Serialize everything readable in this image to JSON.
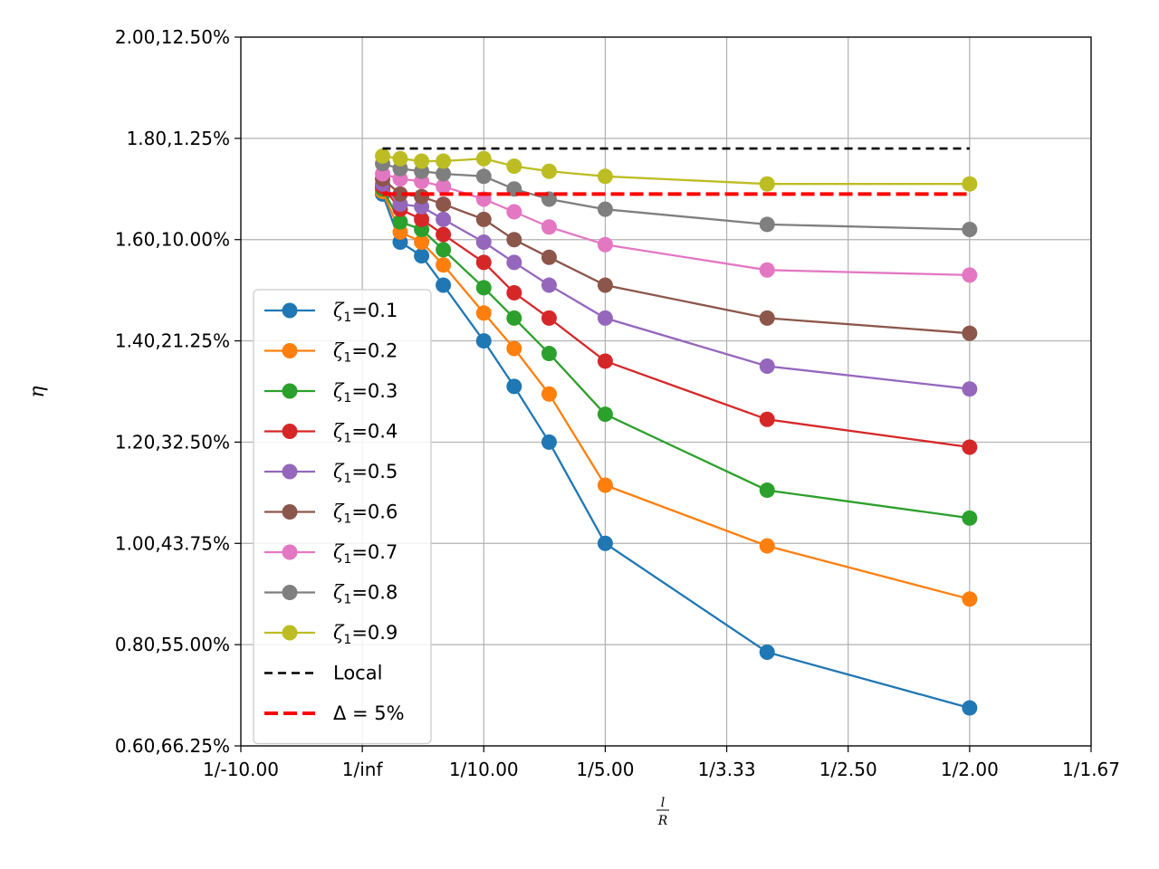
{
  "chart_data": {
    "type": "line",
    "ylabel": "η",
    "xlabel_num": "l",
    "xlabel_den": "R",
    "xlim": [
      -0.1,
      0.6
    ],
    "ylim": [
      0.6,
      2.0
    ],
    "x_ticks": [
      {
        "value": -0.1,
        "label": "1/-10.00"
      },
      {
        "value": 0.0,
        "label": "1/inf"
      },
      {
        "value": 0.1,
        "label": "1/10.00"
      },
      {
        "value": 0.2,
        "label": "1/5.00"
      },
      {
        "value": 0.3,
        "label": "1/3.33"
      },
      {
        "value": 0.4,
        "label": "1/2.50"
      },
      {
        "value": 0.5,
        "label": "1/2.00"
      },
      {
        "value": 0.6,
        "label": "1/1.67"
      }
    ],
    "y_ticks": [
      {
        "value": 0.6,
        "label": "0.60,66.25%"
      },
      {
        "value": 0.8,
        "label": "0.80,55.00%"
      },
      {
        "value": 1.0,
        "label": "1.00,43.75%"
      },
      {
        "value": 1.2,
        "label": "1.20,32.50%"
      },
      {
        "value": 1.4,
        "label": "1.40,21.25%"
      },
      {
        "value": 1.6,
        "label": "1.60,10.00%"
      },
      {
        "value": 1.8,
        "label": "1.80,1.25%"
      },
      {
        "value": 2.0,
        "label": "2.00,12.50%"
      }
    ],
    "grid": true,
    "legend_position": "lower-left",
    "x": [
      0.0167,
      0.0312,
      0.0488,
      0.0667,
      0.1,
      0.125,
      0.1538,
      0.2,
      0.3333,
      0.5
    ],
    "series": [
      {
        "name": "ζ1=0.1",
        "color": "#1f77b4",
        "values": [
          1.69,
          1.595,
          1.568,
          1.51,
          1.4,
          1.31,
          1.2,
          1.0,
          0.785,
          0.675
        ]
      },
      {
        "name": "ζ1=0.2",
        "color": "#ff7f0e",
        "values": [
          1.695,
          1.615,
          1.595,
          1.55,
          1.455,
          1.385,
          1.295,
          1.115,
          0.995,
          0.89
        ]
      },
      {
        "name": "ζ1=0.3",
        "color": "#2ca02c",
        "values": [
          1.7,
          1.635,
          1.62,
          1.58,
          1.505,
          1.445,
          1.375,
          1.255,
          1.105,
          1.05
        ]
      },
      {
        "name": "ζ1=0.4",
        "color": "#d62728",
        "values": [
          1.705,
          1.66,
          1.64,
          1.61,
          1.555,
          1.495,
          1.445,
          1.36,
          1.245,
          1.19
        ]
      },
      {
        "name": "ζ1=0.5",
        "color": "#9467bd",
        "values": [
          1.71,
          1.67,
          1.665,
          1.64,
          1.595,
          1.555,
          1.51,
          1.445,
          1.35,
          1.305
        ]
      },
      {
        "name": "ζ1=0.6",
        "color": "#8c564b",
        "values": [
          1.72,
          1.69,
          1.685,
          1.67,
          1.64,
          1.6,
          1.565,
          1.51,
          1.445,
          1.415
        ]
      },
      {
        "name": "ζ1=0.7",
        "color": "#e377c2",
        "values": [
          1.73,
          1.72,
          1.715,
          1.705,
          1.68,
          1.655,
          1.625,
          1.59,
          1.54,
          1.53
        ]
      },
      {
        "name": "ζ1=0.8",
        "color": "#7f7f7f",
        "values": [
          1.75,
          1.74,
          1.735,
          1.73,
          1.725,
          1.7,
          1.68,
          1.66,
          1.63,
          1.62
        ]
      },
      {
        "name": "ζ1=0.9",
        "color": "#bcbd22",
        "values": [
          1.765,
          1.76,
          1.755,
          1.755,
          1.76,
          1.745,
          1.735,
          1.725,
          1.71,
          1.71
        ]
      }
    ],
    "reference_lines": [
      {
        "name": "Local",
        "color": "#000000",
        "y": 1.78,
        "x_range": [
          0.0167,
          0.5
        ],
        "dash": "short"
      },
      {
        "name": "Δ = 5%",
        "color": "#ff0000",
        "y": 1.69,
        "x_range": [
          0.0167,
          0.5
        ],
        "dash": "long"
      }
    ],
    "legend": [
      {
        "symbol": "ζ",
        "sub": "1",
        "text": "=0.1",
        "color": "#1f77b4",
        "kind": "marker"
      },
      {
        "symbol": "ζ",
        "sub": "1",
        "text": "=0.2",
        "color": "#ff7f0e",
        "kind": "marker"
      },
      {
        "symbol": "ζ",
        "sub": "1",
        "text": "=0.3",
        "color": "#2ca02c",
        "kind": "marker"
      },
      {
        "symbol": "ζ",
        "sub": "1",
        "text": "=0.4",
        "color": "#d62728",
        "kind": "marker"
      },
      {
        "symbol": "ζ",
        "sub": "1",
        "text": "=0.5",
        "color": "#9467bd",
        "kind": "marker"
      },
      {
        "symbol": "ζ",
        "sub": "1",
        "text": "=0.6",
        "color": "#8c564b",
        "kind": "marker"
      },
      {
        "symbol": "ζ",
        "sub": "1",
        "text": "=0.7",
        "color": "#e377c2",
        "kind": "marker"
      },
      {
        "symbol": "ζ",
        "sub": "1",
        "text": "=0.8",
        "color": "#7f7f7f",
        "kind": "marker"
      },
      {
        "symbol": "ζ",
        "sub": "1",
        "text": "=0.9",
        "color": "#bcbd22",
        "kind": "marker"
      },
      {
        "symbol": "",
        "sub": "",
        "text": "Local",
        "color": "#000000",
        "kind": "short-dash"
      },
      {
        "symbol": "",
        "sub": "",
        "text": "Δ = 5%",
        "color": "#ff0000",
        "kind": "long-dash"
      }
    ]
  }
}
